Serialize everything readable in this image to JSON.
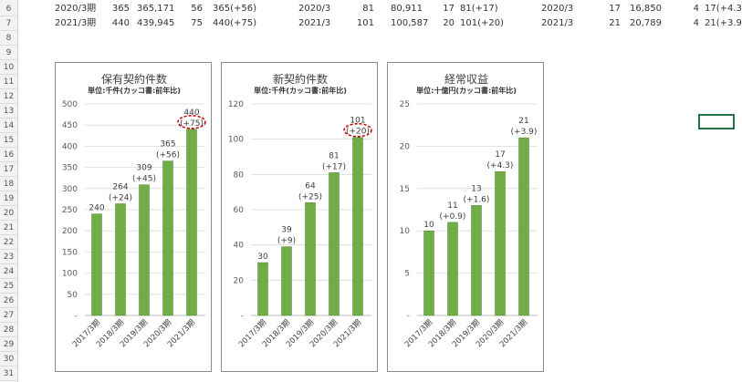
{
  "row_numbers": [
    "6",
    "7",
    "8",
    "9",
    "10",
    "11",
    "12",
    "13",
    "14",
    "15",
    "16",
    "17",
    "18",
    "19",
    "20",
    "21",
    "22",
    "23",
    "24",
    "25",
    "26",
    "27",
    "28",
    "29",
    "30",
    "31"
  ],
  "table_rows": [
    {
      "period": "2020/3期",
      "held": "365",
      "held_raw": "365,171",
      "held_diff": "56",
      "held_label": "365(+56)",
      "new_period": "2020/3",
      "new": "81",
      "new_raw": "80,911",
      "new_diff": "17",
      "new_label": "81(+17)",
      "rev_period": "2020/3",
      "rev": "17",
      "rev_raw": "16,850",
      "rev_diff": "4",
      "rev_label": "17(+4.3"
    },
    {
      "period": "2021/3期",
      "held": "440",
      "held_raw": "439,945",
      "held_diff": "75",
      "held_label": "440(+75)",
      "new_period": "2021/3",
      "new": "101",
      "new_raw": "100,587",
      "new_diff": "20",
      "new_label": "101(+20)",
      "rev_period": "2021/3",
      "rev": "21",
      "rev_raw": "20,789",
      "rev_diff": "4",
      "rev_label": "21(+3.9"
    }
  ],
  "colors": {
    "bar": "#70ad47",
    "highlight": "#c00000",
    "grid": "#d9d9d9",
    "selection": "#217346"
  },
  "chart_data": [
    {
      "type": "bar",
      "title": "保有契約件数",
      "subtitle": "単位:千件(カッコ書:前年比)",
      "categories": [
        "2017/3期",
        "2018/3期",
        "2019/3期",
        "2020/3期",
        "2021/3期"
      ],
      "values": [
        240,
        264,
        309,
        365,
        440
      ],
      "labels": [
        "240",
        "264\n(+24)",
        "309\n(+45)",
        "365\n(+56)",
        "440\n(+75)"
      ],
      "yticks": [
        "-",
        "50",
        "100",
        "150",
        "200",
        "250",
        "300",
        "350",
        "400",
        "450",
        "500"
      ],
      "ylim": [
        0,
        500
      ],
      "grid": true,
      "highlight_last": true
    },
    {
      "type": "bar",
      "title": "新契約件数",
      "subtitle": "単位:千件(カッコ書:前年比)",
      "categories": [
        "2017/3期",
        "2018/3期",
        "2019/3期",
        "2020/3期",
        "2021/3期"
      ],
      "values": [
        30,
        39,
        64,
        81,
        101
      ],
      "labels": [
        "30",
        "39\n(+9)",
        "64\n(+25)",
        "81\n(+17)",
        "101\n(+20)"
      ],
      "yticks": [
        "-",
        "20",
        "40",
        "60",
        "80",
        "100",
        "120"
      ],
      "ylim": [
        0,
        120
      ],
      "grid": true,
      "highlight_last": true
    },
    {
      "type": "bar",
      "title": "経常収益",
      "subtitle": "単位:十億円(カッコ書:前年比)",
      "categories": [
        "2017/3期",
        "2018/3期",
        "2019/3期",
        "2020/3期",
        "2021/3期"
      ],
      "values": [
        10,
        11,
        13,
        17,
        21
      ],
      "labels": [
        "10",
        "11\n(+0.9)",
        "13\n(+1.6)",
        "17\n(+4.3)",
        "21\n(+3.9)"
      ],
      "yticks": [
        "-",
        "5",
        "10",
        "15",
        "20",
        "25"
      ],
      "ylim": [
        0,
        25
      ],
      "grid": true,
      "highlight_last": false
    }
  ]
}
